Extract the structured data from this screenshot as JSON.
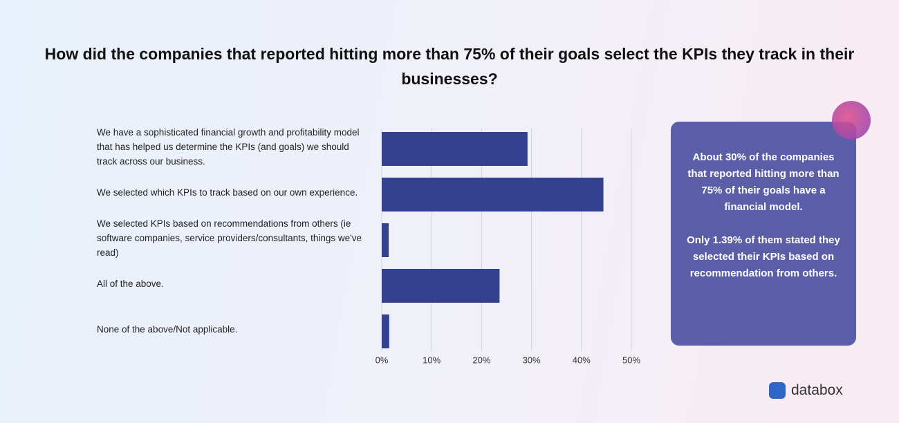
{
  "chart_data": {
    "type": "bar",
    "orientation": "horizontal",
    "title": "How did the companies that reported hitting more than 75% of their goals select the KPIs they track in their businesses?",
    "categories": [
      "We have a sophisticated financial growth and profitability model that has helped us determine the KPIs (and goals) we should track across our business.",
      "We selected which KPIs to track based on our own experience.",
      "We selected KPIs based on recommendations from others (ie software companies, service providers/consultants, things we've read)",
      "All of the above.",
      "None of the above/Not applicable."
    ],
    "values": [
      29.2,
      44.4,
      1.39,
      23.6,
      1.5
    ],
    "color": "#34418f",
    "xlim": [
      0,
      50
    ],
    "xticks": [
      {
        "value": 0,
        "label": "0%"
      },
      {
        "value": 10,
        "label": "10%"
      },
      {
        "value": 20,
        "label": "20%"
      },
      {
        "value": 30,
        "label": "30%"
      },
      {
        "value": 40,
        "label": "40%"
      },
      {
        "value": 50,
        "label": "50%"
      }
    ],
    "grid": true,
    "annotations": [
      "About 30% of the companies that reported hitting more than 75% of their goals have a financial model.",
      "Only 1.39% of them stated they selected their KPIs based on recommendation from others."
    ]
  },
  "logo": "databox"
}
